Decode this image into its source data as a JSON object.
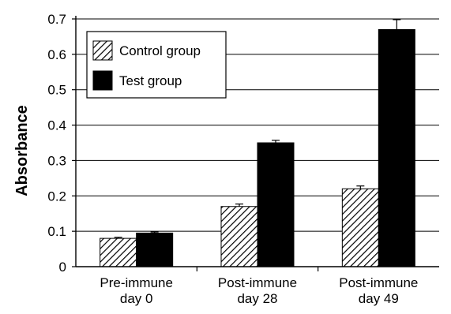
{
  "chart_data": {
    "type": "bar",
    "title": "",
    "xlabel": "",
    "ylabel": "Absorbance",
    "ylim": [
      0,
      0.7
    ],
    "yticks": [
      0,
      0.1,
      0.2,
      0.3,
      0.4,
      0.5,
      0.6,
      0.7
    ],
    "ytick_labels": [
      "0",
      "0.1",
      "0.2",
      "0.3",
      "0.4",
      "0.5",
      "0.6",
      "0.7"
    ],
    "grid": true,
    "legend_position": "top-left",
    "categories": [
      [
        "Pre-immune",
        "day 0"
      ],
      [
        "Post-immune",
        "day 28"
      ],
      [
        "Post-immune",
        "day 49"
      ]
    ],
    "series": [
      {
        "name": "Control group",
        "values": [
          0.08,
          0.17,
          0.22
        ],
        "errors": [
          0.003,
          0.007,
          0.008
        ],
        "fill": "hatched",
        "color": "#000000"
      },
      {
        "name": "Test group",
        "values": [
          0.095,
          0.35,
          0.67
        ],
        "errors": [
          0.003,
          0.007,
          0.028
        ],
        "fill": "solid",
        "color": "#000000"
      }
    ]
  }
}
